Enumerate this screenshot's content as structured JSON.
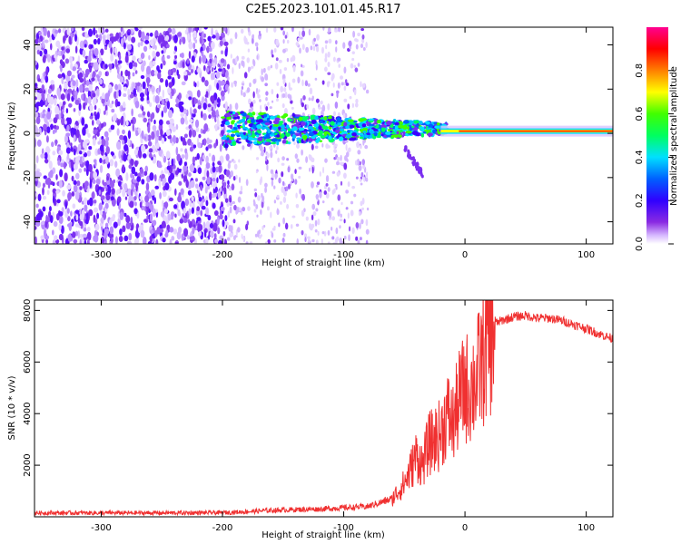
{
  "title": "C2E5.2023.101.01.45.R17",
  "colors": {
    "snr_line": "#f03030",
    "colormap": [
      "#ffffff",
      "#c8a0ff",
      "#8a2be2",
      "#3b00ff",
      "#0050ff",
      "#00e0ff",
      "#00ff40",
      "#a0ff00",
      "#ffff00",
      "#ff8000",
      "#ff0000",
      "#ff0080"
    ]
  },
  "chart_data": [
    {
      "type": "heatmap",
      "xlabel": "Height of straight line (km)",
      "ylabel": "Frequency (Hz)",
      "xlim": [
        -355,
        122
      ],
      "ylim": [
        -50,
        48
      ],
      "xticks": [
        -300,
        -200,
        -100,
        0,
        100
      ],
      "yticks": [
        -40,
        -20,
        0,
        20,
        40
      ],
      "colorbar": {
        "label": "Normalized spectral amplitude",
        "range": [
          0.0,
          1.0
        ],
        "ticks": [
          "0.0",
          "0.2",
          "0.4",
          "0.6",
          "0.8"
        ]
      },
      "features": {
        "noise_region_x": [
          -355,
          -195
        ],
        "sparse_noise_x": [
          -195,
          -80
        ],
        "signal_start_x": -200,
        "signal_center_hz": 2,
        "signal_end_x": 122
      }
    },
    {
      "type": "line",
      "xlabel": "Height of straight line (km)",
      "ylabel": "SNR (10 * v/v)",
      "xlim": [
        -355,
        122
      ],
      "ylim": [
        0,
        8400
      ],
      "xticks": [
        -300,
        -200,
        -100,
        0,
        100
      ],
      "yticks": [
        2000,
        4000,
        6000,
        8000
      ],
      "series": [
        {
          "x": [
            -355,
            -300,
            -250,
            -200,
            -180,
            -160,
            -140,
            -120,
            -100,
            -80,
            -60,
            -50,
            -45,
            -40,
            -35,
            -30,
            -25,
            -20,
            -15,
            -10,
            -5,
            0,
            5,
            10,
            15,
            20,
            25,
            30,
            40,
            50,
            60,
            70,
            80,
            90,
            100,
            110,
            122
          ],
          "values": [
            150,
            150,
            150,
            160,
            200,
            250,
            280,
            300,
            350,
            400,
            700,
            1300,
            1800,
            2400,
            2000,
            2800,
            3000,
            3200,
            4000,
            3600,
            4500,
            5000,
            5000,
            5400,
            6200,
            6800,
            7500,
            7600,
            7750,
            7800,
            7700,
            7700,
            7600,
            7450,
            7300,
            7100,
            6900
          ]
        }
      ]
    }
  ]
}
